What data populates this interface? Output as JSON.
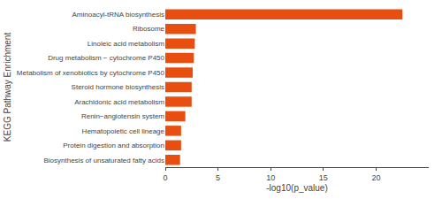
{
  "chart_data": {
    "type": "bar",
    "orientation": "horizontal",
    "categories": [
      "Aminoacyl-tRNA biosynthesis",
      "Ribosome",
      "Linoleic acid metabolism",
      "Drug metabolism − cytochrome P450",
      "Metabolism of xenobiotics by cytochrome P450",
      "Steroid hormone biosynthesis",
      "Arachidonic acid metabolism",
      "Renin−angiotensin system",
      "Hematopoietic cell lineage",
      "Protein digestion and absorption",
      "Biosynthesis of unsaturated fatty acids"
    ],
    "values": [
      22.5,
      2.9,
      2.8,
      2.7,
      2.6,
      2.5,
      2.5,
      1.9,
      1.5,
      1.5,
      1.4
    ],
    "color": "#E84E0F",
    "xlabel": "-log10(p_value)",
    "ylabel": "KEGG Pathway Enrichment",
    "xlim": [
      0,
      25
    ],
    "xticks": [
      0,
      5,
      10,
      15,
      20
    ],
    "grid": false
  }
}
